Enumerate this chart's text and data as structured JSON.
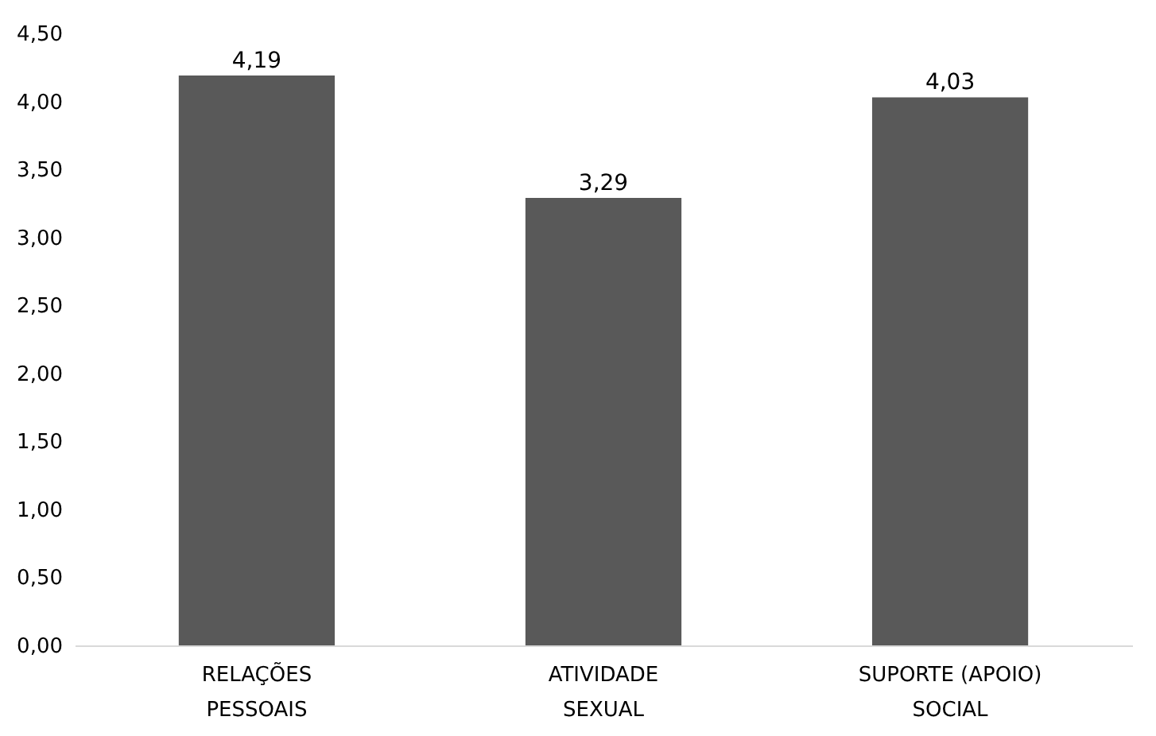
{
  "chart_data": {
    "type": "bar",
    "categories": [
      "RELAÇÕES PESSOAIS",
      "ATIVIDADE SEXUAL",
      "SUPORTE (APOIO) SOCIAL"
    ],
    "values": [
      4.19,
      3.29,
      4.03
    ],
    "color": "#595959",
    "ylim": [
      0,
      4.5
    ],
    "yticks": [
      {
        "value": 0,
        "label": "0,00"
      },
      {
        "value": 0.5,
        "label": "0,50"
      },
      {
        "value": 1,
        "label": "1,00"
      },
      {
        "value": 1.5,
        "label": "1,50"
      },
      {
        "value": 2,
        "label": "2,00"
      },
      {
        "value": 2.5,
        "label": "2,50"
      },
      {
        "value": 3,
        "label": "3,00"
      },
      {
        "value": 3.5,
        "label": "3,50"
      },
      {
        "value": 4,
        "label": "4,00"
      },
      {
        "value": 4.5,
        "label": "4,50"
      }
    ],
    "grid": false,
    "value_labels": [
      "4,19",
      "3,29",
      "4,03"
    ]
  }
}
